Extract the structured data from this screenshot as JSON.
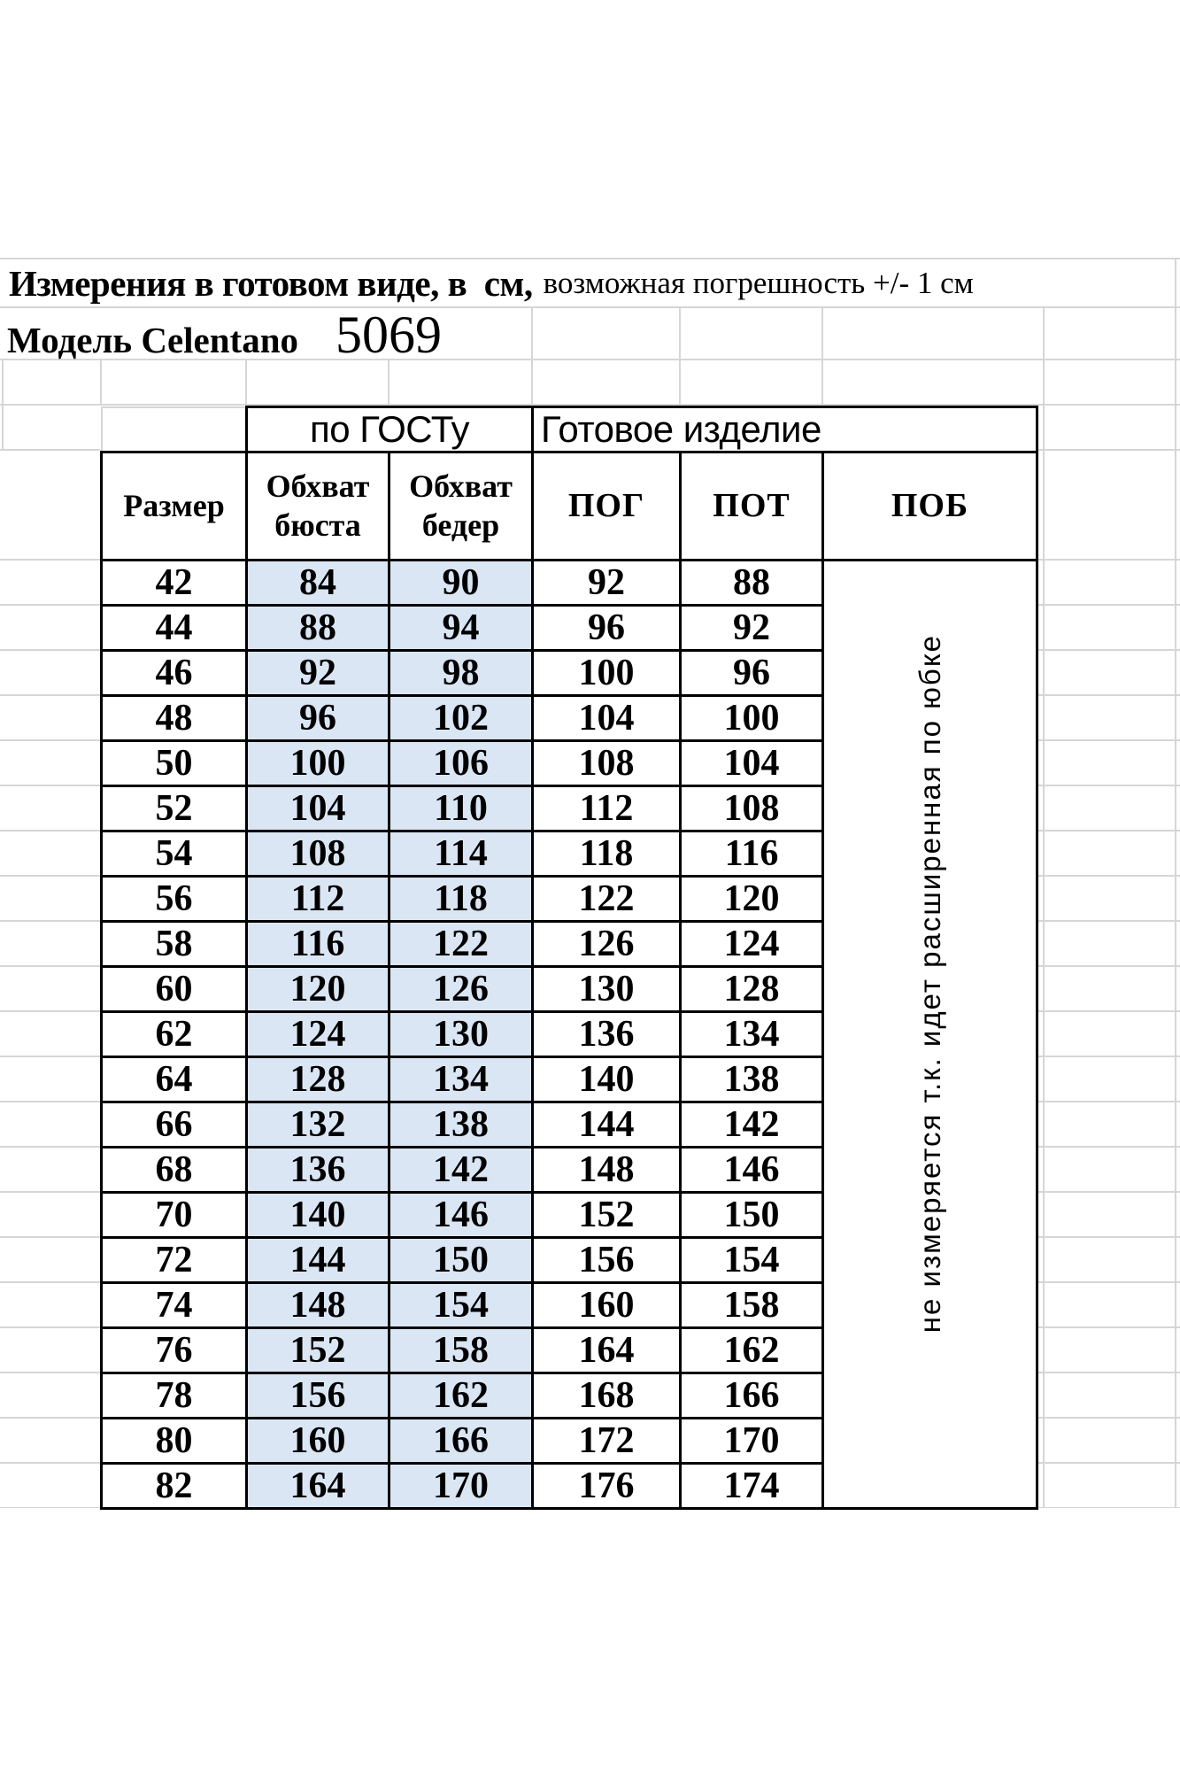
{
  "sheet": {
    "title_bold": "Измерения в готовом виде, в  см,",
    "title_rest": "возможная погрешность +/- 1 см",
    "model_label": "Модель Celentano",
    "model_number": "5069",
    "group_gost": "по ГОСТу",
    "group_ready": "Готовое изделие",
    "col_size": "Размер",
    "col_bust": "Обхват бюста",
    "col_hips": "Обхват бедер",
    "col_pog": "ПОГ",
    "col_pot": "ПОТ",
    "col_pob": "ПОБ",
    "pob_note": "не измеряется т.к. идет расширенная по юбке",
    "colors": {
      "highlight": "#dbe6f4",
      "grid": "#d6d6d6",
      "border": "#000000"
    },
    "rows": [
      {
        "size": "42",
        "bust": "84",
        "hips": "90",
        "pog": "92",
        "pot": "88"
      },
      {
        "size": "44",
        "bust": "88",
        "hips": "94",
        "pog": "96",
        "pot": "92"
      },
      {
        "size": "46",
        "bust": "92",
        "hips": "98",
        "pog": "100",
        "pot": "96"
      },
      {
        "size": "48",
        "bust": "96",
        "hips": "102",
        "pog": "104",
        "pot": "100"
      },
      {
        "size": "50",
        "bust": "100",
        "hips": "106",
        "pog": "108",
        "pot": "104"
      },
      {
        "size": "52",
        "bust": "104",
        "hips": "110",
        "pog": "112",
        "pot": "108"
      },
      {
        "size": "54",
        "bust": "108",
        "hips": "114",
        "pog": "118",
        "pot": "116"
      },
      {
        "size": "56",
        "bust": "112",
        "hips": "118",
        "pog": "122",
        "pot": "120"
      },
      {
        "size": "58",
        "bust": "116",
        "hips": "122",
        "pog": "126",
        "pot": "124"
      },
      {
        "size": "60",
        "bust": "120",
        "hips": "126",
        "pog": "130",
        "pot": "128"
      },
      {
        "size": "62",
        "bust": "124",
        "hips": "130",
        "pog": "136",
        "pot": "134"
      },
      {
        "size": "64",
        "bust": "128",
        "hips": "134",
        "pog": "140",
        "pot": "138"
      },
      {
        "size": "66",
        "bust": "132",
        "hips": "138",
        "pog": "144",
        "pot": "142"
      },
      {
        "size": "68",
        "bust": "136",
        "hips": "142",
        "pog": "148",
        "pot": "146"
      },
      {
        "size": "70",
        "bust": "140",
        "hips": "146",
        "pog": "152",
        "pot": "150"
      },
      {
        "size": "72",
        "bust": "144",
        "hips": "150",
        "pog": "156",
        "pot": "154"
      },
      {
        "size": "74",
        "bust": "148",
        "hips": "154",
        "pog": "160",
        "pot": "158"
      },
      {
        "size": "76",
        "bust": "152",
        "hips": "158",
        "pog": "164",
        "pot": "162"
      },
      {
        "size": "78",
        "bust": "156",
        "hips": "162",
        "pog": "168",
        "pot": "166"
      },
      {
        "size": "80",
        "bust": "160",
        "hips": "166",
        "pog": "172",
        "pot": "170"
      },
      {
        "size": "82",
        "bust": "164",
        "hips": "170",
        "pog": "176",
        "pot": "174"
      }
    ]
  }
}
